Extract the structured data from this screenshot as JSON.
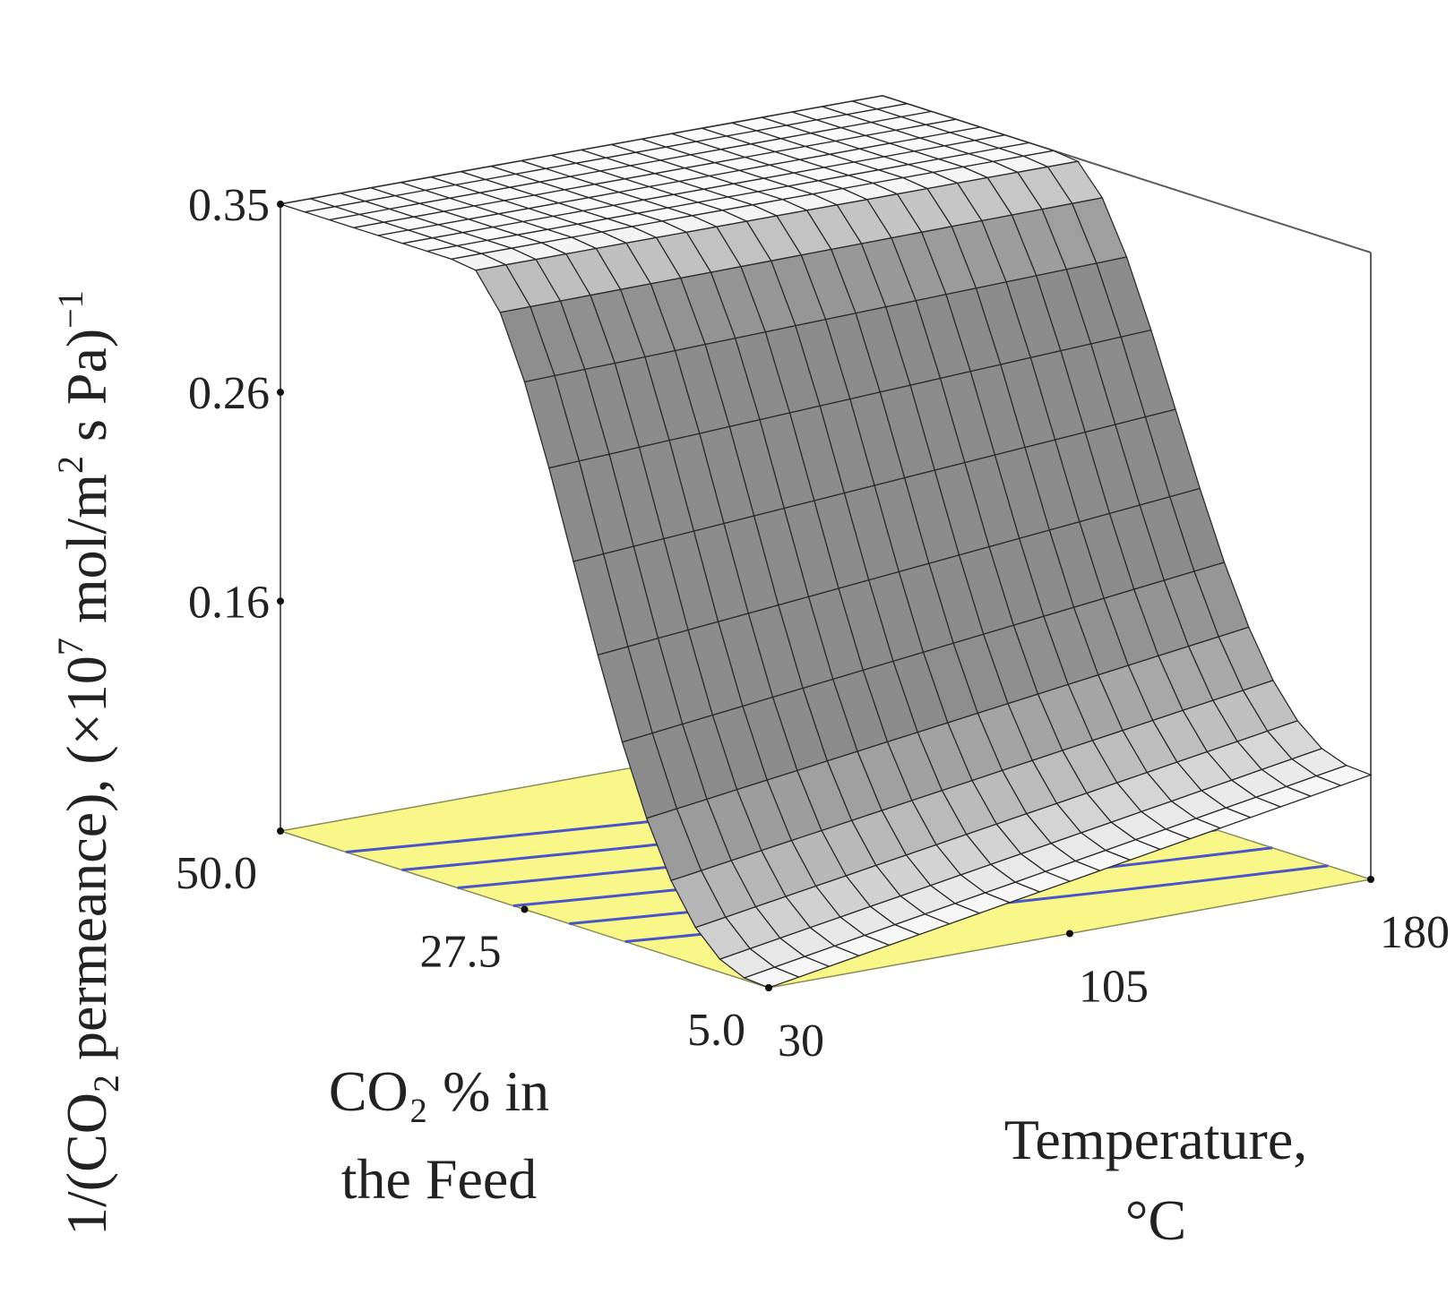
{
  "chart_data": {
    "type": "surface3d",
    "z_axis": {
      "label_parts": {
        "prefix": "1/(CO",
        "sub": "2",
        "mid": " permeance), (×10",
        "sup1": "7",
        "mid2": " mol/m",
        "sup2": "2",
        "tail": " s Pa)",
        "sup3": "−1"
      },
      "ticks": [
        "0.35",
        "0.26",
        "0.16"
      ],
      "tick_values": [
        0.35,
        0.26,
        0.16
      ],
      "range": [
        0.05,
        0.35
      ]
    },
    "y_axis": {
      "label_lines": [
        "CO₂ % in",
        "the Feed"
      ],
      "ticks": [
        "50.0",
        "27.5",
        "5.0"
      ],
      "tick_values": [
        50.0,
        27.5,
        5.0
      ],
      "range": [
        5.0,
        50.0
      ]
    },
    "x_axis": {
      "label_lines": [
        "Temperature,",
        "°C"
      ],
      "ticks": [
        "30",
        "105",
        "180"
      ],
      "tick_values": [
        30,
        105,
        180
      ],
      "range": [
        30,
        180
      ]
    },
    "surface": {
      "grid_size": 21,
      "corner_values": {
        "T30_CO2_5": 0.05,
        "T30_CO2_50": 0.35,
        "T180_CO2_5": 0.1,
        "T180_CO2_50": 0.35
      },
      "plateau_value": 0.35
    },
    "contour_floor": {
      "line_count": 6
    },
    "colors": {
      "floor": "#f9f68a",
      "contour": "#4a56c8",
      "surface_high": "#ffffff",
      "surface_low": "#6e6e6e"
    }
  }
}
